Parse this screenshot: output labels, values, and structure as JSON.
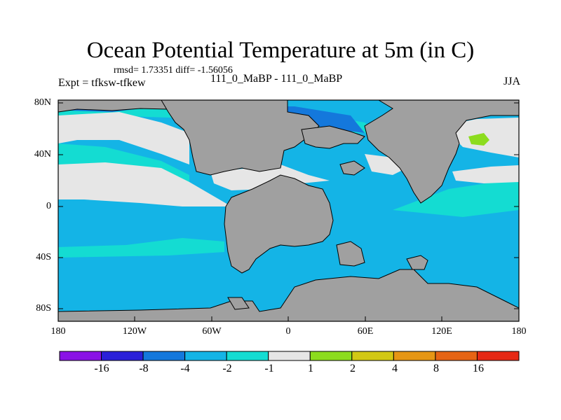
{
  "title": "Ocean Potential Temperature at 5m (in C)",
  "stats": "rmsd= 1.73351  diff= -1.56056",
  "experiment": "Expt = tfksw-tfkew",
  "subtitle": "111_0_MaBP - 111_0_MaBP",
  "season": "JJA",
  "y_ticks": [
    "80N",
    "40N",
    "0",
    "40S",
    "80S"
  ],
  "x_ticks": [
    "180",
    "120W",
    "60W",
    "0",
    "60E",
    "120E",
    "180"
  ],
  "colorbar": {
    "labels": [
      "-16",
      "-8",
      "-4",
      "-2",
      "-1",
      "1",
      "2",
      "4",
      "8",
      "16"
    ],
    "colors": [
      "#8a12e6",
      "#2a20d8",
      "#1478dc",
      "#14b4e6",
      "#14dcd2",
      "#e6e6e6",
      "#8cdc1e",
      "#d2c814",
      "#e69614",
      "#e66414",
      "#e62814"
    ]
  },
  "map_colors": {
    "land": "#a0a0a0",
    "ocean_main": "#14b4e6",
    "ocean_cyan": "#14dcd2",
    "ocean_blue": "#1478dc",
    "neutral": "#e6e6e6",
    "warm_green": "#8cdc1e"
  }
}
